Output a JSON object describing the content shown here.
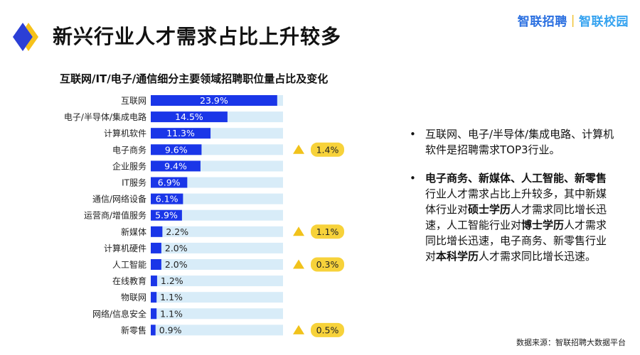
{
  "page": {
    "title": "新兴行业人才需求占比上升较多",
    "logo_left": "智联招聘",
    "logo_sep": "|",
    "logo_right": "智联校园",
    "source": "数据来源：智联招聘大数据平台"
  },
  "colors": {
    "bar": "#1a36e8",
    "track": "#d8ecf8",
    "badge": "#f7d23a",
    "arrow": "#f1c21b",
    "icon_blue": "#2b3fd6",
    "icon_yellow": "#f6c21a"
  },
  "chart_data": {
    "type": "bar",
    "orientation": "horizontal",
    "title": "互联网/IT/电子/通信细分主要领域招聘职位量占比及变化",
    "categories": [
      "互联网",
      "电子/半导体/集成电路",
      "计算机软件",
      "电子商务",
      "企业服务",
      "IT服务",
      "通信/网络设备",
      "运营商/增值服务",
      "新媒体",
      "计算机硬件",
      "人工智能",
      "在线教育",
      "物联网",
      "网络/信息安全",
      "新零售"
    ],
    "values": [
      23.9,
      14.5,
      11.3,
      9.6,
      9.4,
      6.9,
      6.1,
      5.9,
      2.2,
      2.0,
      2.0,
      1.2,
      1.1,
      1.1,
      0.9
    ],
    "value_labels": [
      "23.9%",
      "14.5%",
      "11.3%",
      "9.6%",
      "9.4%",
      "6.9%",
      "6.1%",
      "5.9%",
      "2.2%",
      "2.0%",
      "2.0%",
      "1.2%",
      "1.1%",
      "1.1%",
      "0.9%"
    ],
    "xlim": [
      0,
      25
    ],
    "changes": [
      {
        "category": "电子商务",
        "direction": "up",
        "label": "1.4%"
      },
      {
        "category": "新媒体",
        "direction": "up",
        "label": "1.1%"
      },
      {
        "category": "人工智能",
        "direction": "up",
        "label": "0.3%"
      },
      {
        "category": "新零售",
        "direction": "up",
        "label": "0.5%"
      }
    ]
  },
  "bullets": [
    {
      "parts": [
        {
          "text": "互联网、电子/半导体/集成电路、计算机软件是招聘需求TOP3行业。",
          "bold": false
        }
      ]
    },
    {
      "parts": [
        {
          "text": "电子商务、新媒体、人工智能、新零售",
          "bold": true
        },
        {
          "text": "行业人才需求占比上升较多，其中新媒体行业对",
          "bold": false
        },
        {
          "text": "硕士学历",
          "bold": true
        },
        {
          "text": "人才需求同比增长迅速，人工智能行业对",
          "bold": false
        },
        {
          "text": "博士学历",
          "bold": true
        },
        {
          "text": "人才需求同比增长迅速，电子商务、新零售行业对",
          "bold": false
        },
        {
          "text": "本科学历",
          "bold": true
        },
        {
          "text": "人才需求同比增长迅速。",
          "bold": false
        }
      ]
    }
  ],
  "bullet_symbol": "•"
}
